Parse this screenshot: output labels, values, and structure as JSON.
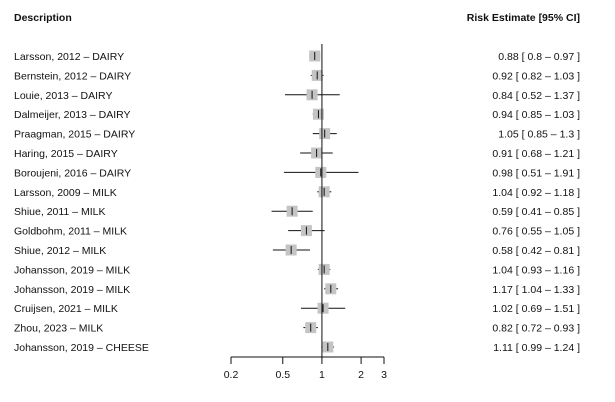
{
  "header": {
    "description": "Description",
    "estimate": "Risk Estimate [95% CI]"
  },
  "chart_data": {
    "type": "forest",
    "x_scale": "log",
    "xlim": [
      0.2,
      3
    ],
    "x_ticks": [
      0.2,
      0.5,
      1,
      2,
      3
    ],
    "x_tick_labels": [
      "0.2",
      "0.5",
      "1",
      "2",
      "3"
    ],
    "reference_line": 1,
    "studies": [
      {
        "label": "Larsson, 2012 – DAIRY",
        "est": 0.88,
        "lo": 0.8,
        "hi": 0.97,
        "ci_text": "0.88 [ 0.8 – 0.97 ]"
      },
      {
        "label": "Bernstein, 2012 – DAIRY",
        "est": 0.92,
        "lo": 0.82,
        "hi": 1.03,
        "ci_text": "0.92 [ 0.82 – 1.03 ]"
      },
      {
        "label": "Louie, 2013 – DAIRY",
        "est": 0.84,
        "lo": 0.52,
        "hi": 1.37,
        "ci_text": "0.84 [ 0.52 – 1.37 ]"
      },
      {
        "label": "Dalmeijer, 2013 – DAIRY",
        "est": 0.94,
        "lo": 0.85,
        "hi": 1.03,
        "ci_text": "0.94 [ 0.85 – 1.03 ]"
      },
      {
        "label": "Praagman, 2015 – DAIRY",
        "est": 1.05,
        "lo": 0.85,
        "hi": 1.3,
        "ci_text": "1.05 [ 0.85 – 1.3 ]"
      },
      {
        "label": "Haring, 2015 – DAIRY",
        "est": 0.91,
        "lo": 0.68,
        "hi": 1.21,
        "ci_text": "0.91 [ 0.68 – 1.21 ]"
      },
      {
        "label": "Boroujeni, 2016 – DAIRY",
        "est": 0.98,
        "lo": 0.51,
        "hi": 1.91,
        "ci_text": "0.98 [ 0.51 – 1.91 ]"
      },
      {
        "label": "Larsson, 2009 – MILK",
        "est": 1.04,
        "lo": 0.92,
        "hi": 1.18,
        "ci_text": "1.04 [ 0.92 – 1.18 ]"
      },
      {
        "label": "Shiue, 2011 – MILK",
        "est": 0.59,
        "lo": 0.41,
        "hi": 0.85,
        "ci_text": "0.59 [ 0.41 – 0.85 ]"
      },
      {
        "label": "Goldbohm, 2011 – MILK",
        "est": 0.76,
        "lo": 0.55,
        "hi": 1.05,
        "ci_text": "0.76 [ 0.55 – 1.05 ]"
      },
      {
        "label": "Shiue, 2012 – MILK",
        "est": 0.58,
        "lo": 0.42,
        "hi": 0.81,
        "ci_text": "0.58 [ 0.42 – 0.81 ]"
      },
      {
        "label": "Johansson, 2019 – MILK",
        "est": 1.04,
        "lo": 0.93,
        "hi": 1.16,
        "ci_text": "1.04 [ 0.93 – 1.16 ]"
      },
      {
        "label": "Johansson, 2019 – MILK",
        "est": 1.17,
        "lo": 1.04,
        "hi": 1.33,
        "ci_text": "1.17 [ 1.04 – 1.33 ]"
      },
      {
        "label": "Cruijsen, 2021 – MILK",
        "est": 1.02,
        "lo": 0.69,
        "hi": 1.51,
        "ci_text": "1.02 [ 0.69 – 1.51 ]"
      },
      {
        "label": "Zhou, 2023 – MILK",
        "est": 0.82,
        "lo": 0.72,
        "hi": 0.93,
        "ci_text": "0.82 [ 0.72 – 0.93 ]"
      },
      {
        "label": "Johansson, 2019 – CHEESE",
        "est": 1.11,
        "lo": 0.99,
        "hi": 1.24,
        "ci_text": "1.11 [ 0.99 – 1.24 ]"
      }
    ],
    "colors": {
      "marker": "#c4c4c4",
      "line": "#111111"
    }
  }
}
